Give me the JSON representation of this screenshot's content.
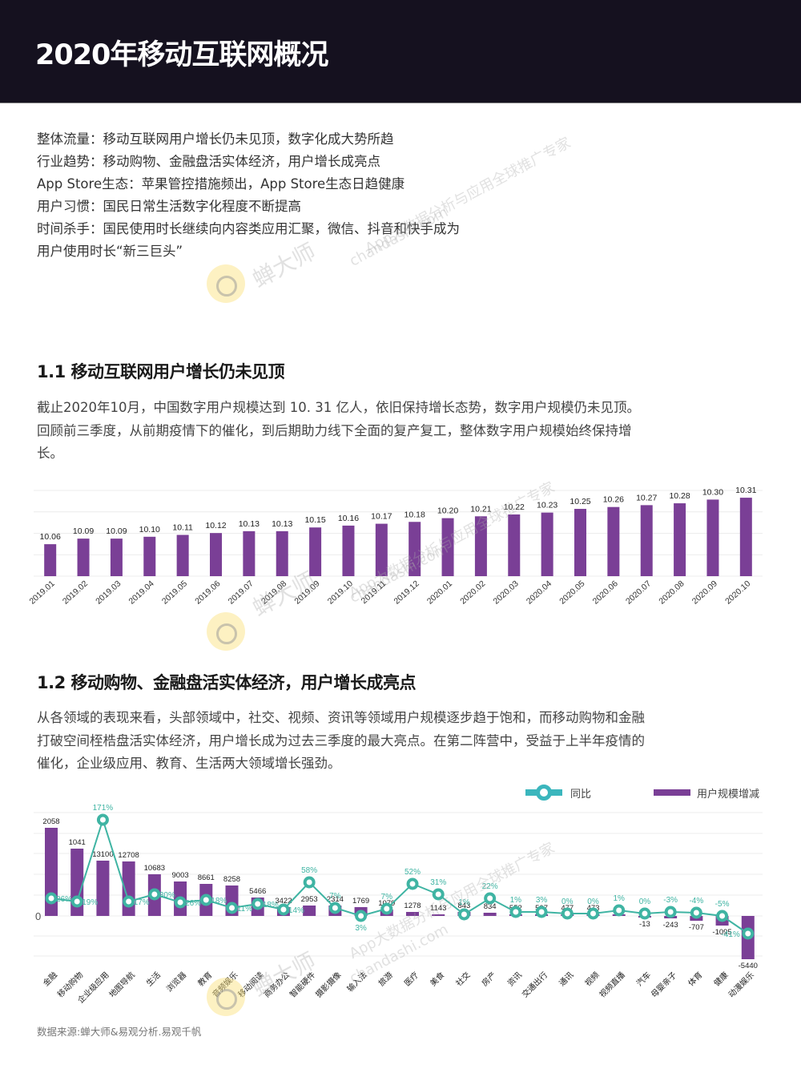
{
  "header": {
    "title": "2020年移动互联网概况"
  },
  "summary": {
    "lines": [
      "整体流量：移动互联网用户增长仍未见顶，数字化成大势所趋",
      "行业趋势：移动购物、金融盘活实体经济，用户增长成亮点",
      "App Store生态：苹果管控措施频出，App Store生态日趋健康",
      "用户习惯：国民日常生活数字化程度不断提高",
      "时间杀手：国民使用时长继续向内容类应用汇聚，微信、抖音和快手成为",
      "用户使用时长“新三巨头”"
    ]
  },
  "section1": {
    "title": "1.1 移动互联网用户增长仍未见顶",
    "paragraph": "截止2020年10月，中国数字用户规模达到 10. 31 亿人，依旧保持增长态势，数字用户规模仍未见顶。回顾前三季度，从前期疫情下的催化，到后期助力线下全面的复产复工，整体数字用户规模始终保持增长。"
  },
  "section2": {
    "title": "1.2 移动购物、金融盘活实体经济，用户增长成亮点",
    "paragraph": "从各领域的表现来看，头部领域中，社交、视频、资讯等领域用户规模逐步趋于饱和，而移动购物和金融打破空间桎梏盘活实体经济，用户增长成为过去三季度的最大亮点。在第二阵营中，受益于上半年疫情的催化，企业级应用、教育、生活两大领域增长强劲。",
    "legend": {
      "line_label": "同比",
      "bar_label": "用户规模增减"
    }
  },
  "footer": {
    "source": "数据来源:蝉大师&易观分析.易观千帆"
  },
  "watermark": {
    "brand": "蝉大师",
    "slogan": "App大数据分析与应用全球推广专家",
    "site": "chandashi.com"
  },
  "colors": {
    "bar": "#7a3f96",
    "line": "#3fb4a3",
    "header_bg": "#15111f"
  },
  "chart_data": [
    {
      "type": "bar",
      "title": "",
      "xlabel": "",
      "ylabel": "",
      "unit": "亿人",
      "categories": [
        "2019.01",
        "2019.02",
        "2019.03",
        "2019.04",
        "2019.05",
        "2019.06",
        "2019.07",
        "2019.08",
        "2019.09",
        "2019.10",
        "2019.11",
        "2019.12",
        "2020.01",
        "2020.02",
        "2020.03",
        "2020.04",
        "2020.05",
        "2020.06",
        "2020.07",
        "2020.08",
        "2020.09",
        "2020.10"
      ],
      "values": [
        10.06,
        10.09,
        10.09,
        10.1,
        10.11,
        10.12,
        10.13,
        10.13,
        10.15,
        10.16,
        10.17,
        10.18,
        10.2,
        10.21,
        10.22,
        10.23,
        10.25,
        10.26,
        10.27,
        10.28,
        10.3,
        10.31
      ],
      "grid": true,
      "data_labels": true
    },
    {
      "type": "bar+line",
      "title": "",
      "legend": [
        "同比",
        "用户规模增减"
      ],
      "legend_position": "top-right",
      "grid": true,
      "zero_label": "0",
      "categories": [
        "金融",
        "移动购物",
        "企业级应用",
        "地图导航",
        "生活",
        "浏览器",
        "教育",
        "音频娱乐",
        "移动阅读",
        "商务办公",
        "智能硬件",
        "摄影摄像",
        "输入法",
        "旅游",
        "医疗",
        "美食",
        "社交",
        "房产",
        "资讯",
        "交通出行",
        "通讯",
        "视频",
        "视频直播",
        "汽车",
        "母婴亲子",
        "体育",
        "健康",
        "动漫娱乐"
      ],
      "series": [
        {
          "name": "用户规模增减",
          "type": "bar",
          "values": [
            2058,
            1041,
            13100,
            12708,
            10683,
            9003,
            8661,
            8258,
            5466,
            3422,
            2953,
            2314,
            1769,
            1079,
            1278,
            1143,
            843,
            834,
            552,
            507,
            477,
            473,
            null,
            -13,
            -243,
            -707,
            -1095,
            -5440
          ]
        },
        {
          "name": "同比",
          "type": "line",
          "unit": "%",
          "values": [
            26,
            19,
            171,
            17,
            30,
            26,
            18,
            11,
            18,
            14,
            58,
            7,
            3,
            7,
            52,
            31,
            1,
            22,
            1,
            3,
            0,
            0,
            1,
            0,
            -3,
            -4,
            -5,
            -41
          ]
        }
      ],
      "bar_labels": [
        "2058",
        "1041",
        "13100",
        "12708",
        "10683",
        "9003",
        "8661",
        "8258",
        "5466",
        "3422",
        "2953",
        "2314",
        "1769",
        "1079",
        "1278",
        "1143",
        "843",
        "834",
        "552",
        "507",
        "477",
        "473",
        "",
        "-13",
        "-243",
        "-707",
        "-1095",
        "-5440"
      ],
      "line_labels": [
        "26%",
        "19%",
        "171%",
        "17%",
        "30%",
        "26%",
        "18%",
        "11%",
        "18%",
        "14%",
        "58%",
        "7%",
        "3%",
        "7%",
        "52%",
        "31%",
        "1%",
        "22%",
        "1%",
        "3%",
        "0%",
        "0%",
        "1%",
        "0%",
        "-3%",
        "-4%",
        "-5%",
        "-41%"
      ]
    }
  ]
}
